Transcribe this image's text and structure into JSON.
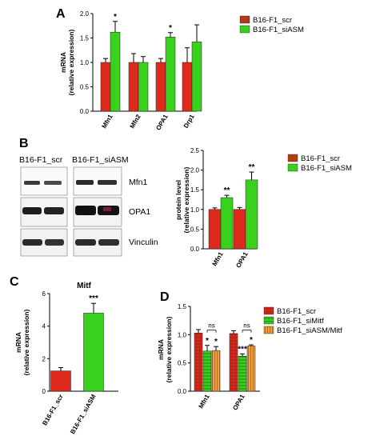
{
  "colors": {
    "scr": "#dd2a1c",
    "scr_legend": "#b33a14",
    "siASM": "#39d11d",
    "siMitf": "#39d11d",
    "siASMMitf": "#eea041",
    "axis": "#000000"
  },
  "panels": {
    "A": "A",
    "B": "B",
    "C": "C",
    "D": "D"
  },
  "chart_data": [
    {
      "id": "A",
      "type": "bar",
      "title": "",
      "ylabel": "mRNA\n(relative expression)",
      "ylim": [
        0,
        2.0
      ],
      "yticks": [
        0,
        0.5,
        1.0,
        1.5,
        2.0
      ],
      "ytick_labels": [
        "0.0",
        "0.5",
        "1.0",
        "1.5",
        "2.0"
      ],
      "categories": [
        "Mfn1",
        "Mfn2",
        "OPA1",
        "Drp1"
      ],
      "series": [
        {
          "name": "B16-F1_scr",
          "values": [
            1.0,
            1.0,
            1.0,
            1.0
          ],
          "errors": [
            0.08,
            0.18,
            0.08,
            0.3
          ]
        },
        {
          "name": "B16-F1_siASM",
          "values": [
            1.62,
            1.0,
            1.52,
            1.42
          ],
          "errors": [
            0.22,
            0.12,
            0.09,
            0.35
          ]
        }
      ],
      "significance": [
        "*",
        "",
        "*",
        ""
      ],
      "legend": "right"
    },
    {
      "id": "B",
      "type": "bar",
      "title": "",
      "ylabel": "protein level\n(relative expression)",
      "ylim": [
        0,
        2.5
      ],
      "yticks": [
        0,
        0.5,
        1.0,
        1.5,
        2.0,
        2.5
      ],
      "ytick_labels": [
        "0.0",
        "0.5",
        "1.0",
        "1.5",
        "2.0",
        "2.5"
      ],
      "categories": [
        "Mfn1",
        "OPA1"
      ],
      "series": [
        {
          "name": "B16-F1_scr",
          "values": [
            1.0,
            1.0
          ],
          "errors": [
            0.04,
            0.05
          ]
        },
        {
          "name": "B16-F1_siASM",
          "values": [
            1.3,
            1.75
          ],
          "errors": [
            0.06,
            0.2
          ]
        }
      ],
      "significance": [
        "**",
        "**"
      ],
      "legend": "top-right"
    },
    {
      "id": "C",
      "type": "bar",
      "title": "Mitf",
      "ylabel": "mRNA\n(relative expression)",
      "ylim": [
        0,
        6
      ],
      "yticks": [
        0,
        2,
        4,
        6
      ],
      "ytick_labels": [
        "0",
        "2",
        "4",
        "6"
      ],
      "categories": [
        "B16-F1_scr",
        "B16-F1_siASM"
      ],
      "series": [
        {
          "name": "",
          "values": [
            1.25,
            4.8
          ],
          "errors": [
            0.2,
            0.6
          ]
        }
      ],
      "significance": [
        "",
        "***"
      ]
    },
    {
      "id": "D",
      "type": "bar",
      "title": "",
      "ylabel": "mRNA\n(relative expression)",
      "ylim": [
        0,
        1.5
      ],
      "yticks": [
        0,
        0.5,
        1.0,
        1.5
      ],
      "ytick_labels": [
        "0.0",
        "0.5",
        "1.0",
        "1.5"
      ],
      "categories": [
        "Mfn1",
        "OPA1"
      ],
      "series": [
        {
          "name": "B16-F1_scr",
          "values": [
            1.03,
            1.02
          ],
          "errors": [
            0.06,
            0.05
          ]
        },
        {
          "name": "B16-F1_siMitf",
          "values": [
            0.71,
            0.62
          ],
          "errors": [
            0.1,
            0.04
          ]
        },
        {
          "name": "B16-F1_siASM/Mitf",
          "values": [
            0.72,
            0.8
          ],
          "errors": [
            0.07,
            0.02
          ]
        }
      ],
      "significance": [
        [
          "",
          "*",
          "*"
        ],
        [
          "",
          "***",
          "*"
        ]
      ],
      "brackets": [
        "ns",
        "ns"
      ],
      "legend": "top-right"
    }
  ],
  "blot": {
    "header_scr": "B16-F1_scr",
    "header_siASM": "B16-F1_siASM",
    "labels": [
      "Mfn1",
      "OPA1",
      "Vinculin"
    ]
  }
}
